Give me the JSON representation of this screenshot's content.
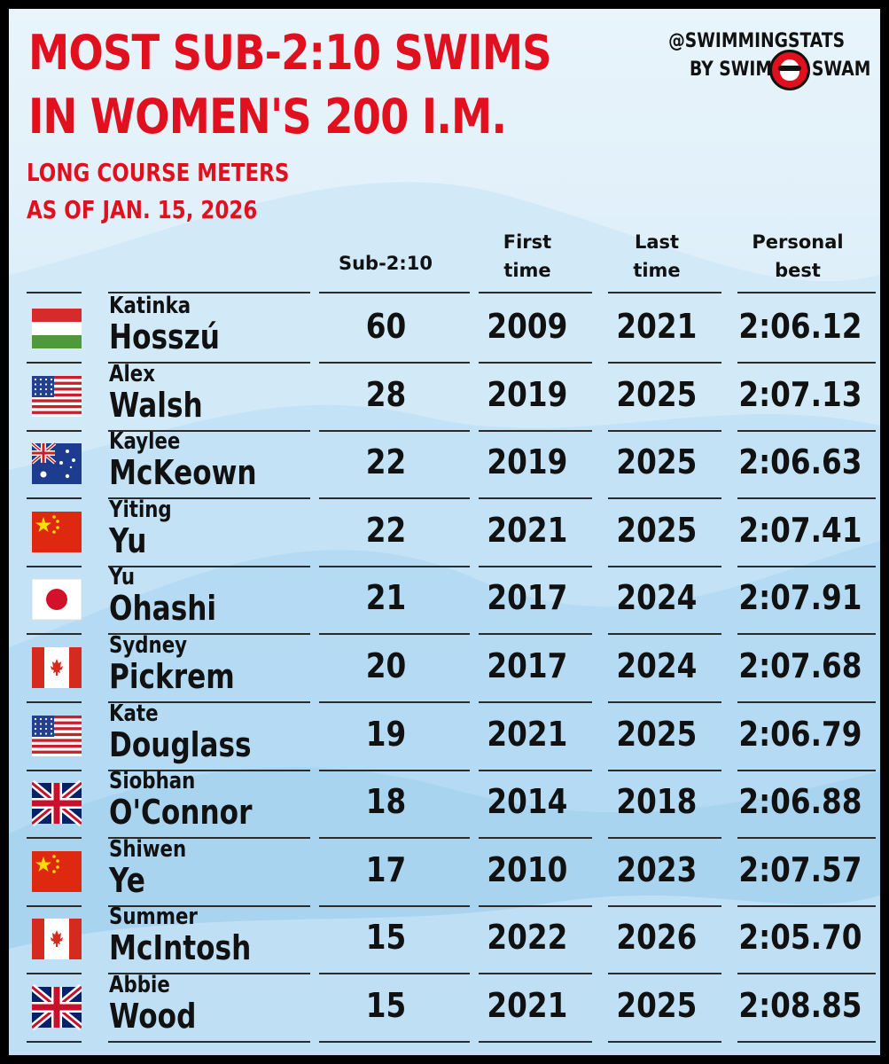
{
  "title": {
    "line1": "MOST SUB-2:10 SWIMS",
    "line2": "IN WOMEN'S 200 I.M."
  },
  "subtitle": {
    "line1": "LONG COURSE METERS",
    "line2": "AS OF JAN. 15, 2026"
  },
  "branding": {
    "handle": "@SWIMMINGSTATS",
    "by_left": "BY SWIM",
    "by_right": "SWAM"
  },
  "colors": {
    "accent": "#e0101f",
    "text": "#111111",
    "background": "#d8ecf8"
  },
  "headers": {
    "sub": "Sub-2:10",
    "first_a": "First",
    "first_b": "time",
    "last_a": "Last",
    "last_b": "time",
    "pb_a": "Personal",
    "pb_b": "best"
  },
  "rows": [
    {
      "first": "Katinka",
      "last": "Hosszú",
      "flag": "hungary-flag",
      "sub": "60",
      "first_time": "2009",
      "last_time": "2021",
      "pb": "2:06.12"
    },
    {
      "first": "Alex",
      "last": "Walsh",
      "flag": "usa-flag",
      "sub": "28",
      "first_time": "2019",
      "last_time": "2025",
      "pb": "2:07.13"
    },
    {
      "first": "Kaylee",
      "last": "McKeown",
      "flag": "australia-flag",
      "sub": "22",
      "first_time": "2019",
      "last_time": "2025",
      "pb": "2:06.63"
    },
    {
      "first": "Yiting",
      "last": "Yu",
      "flag": "china-flag",
      "sub": "22",
      "first_time": "2021",
      "last_time": "2025",
      "pb": "2:07.41"
    },
    {
      "first": "Yu",
      "last": "Ohashi",
      "flag": "japan-flag",
      "sub": "21",
      "first_time": "2017",
      "last_time": "2024",
      "pb": "2:07.91"
    },
    {
      "first": "Sydney",
      "last": "Pickrem",
      "flag": "canada-flag",
      "sub": "20",
      "first_time": "2017",
      "last_time": "2024",
      "pb": "2:07.68"
    },
    {
      "first": "Kate",
      "last": "Douglass",
      "flag": "usa-flag",
      "sub": "19",
      "first_time": "2021",
      "last_time": "2025",
      "pb": "2:06.79"
    },
    {
      "first": "Siobhan",
      "last": "O'Connor",
      "flag": "uk-flag",
      "sub": "18",
      "first_time": "2014",
      "last_time": "2018",
      "pb": "2:06.88"
    },
    {
      "first": "Shiwen",
      "last": "Ye",
      "flag": "china-flag",
      "sub": "17",
      "first_time": "2010",
      "last_time": "2023",
      "pb": "2:07.57"
    },
    {
      "first": "Summer",
      "last": "McIntosh",
      "flag": "canada-flag",
      "sub": "15",
      "first_time": "2022",
      "last_time": "2026",
      "pb": "2:05.70"
    },
    {
      "first": "Abbie",
      "last": "Wood",
      "flag": "uk-flag",
      "sub": "15",
      "first_time": "2021",
      "last_time": "2025",
      "pb": "2:08.85"
    }
  ]
}
